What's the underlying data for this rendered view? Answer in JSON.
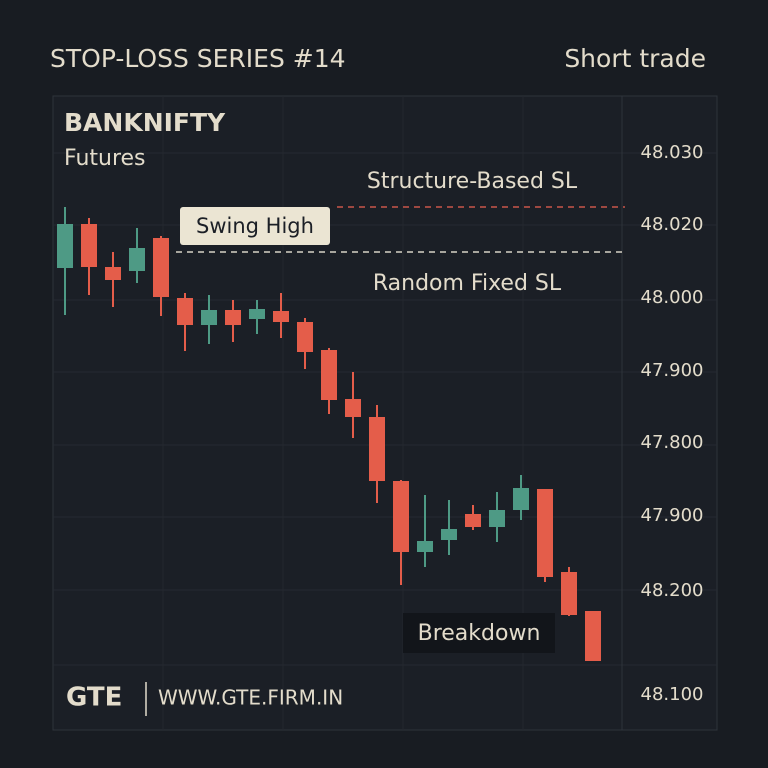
{
  "header": {
    "title": "STOP-LOSS SERIES #14",
    "tag": "Short trade"
  },
  "chart": {
    "symbol": "BANKNIFTY",
    "subtitle": "Futures",
    "annotations": {
      "structure_sl": "Structure-Based SL",
      "swing_high": "Swing High",
      "random_sl": "Random Fixed SL",
      "breakdown": "Breakdown"
    },
    "price_labels": [
      "48.030",
      "48.020",
      "48.000",
      "47.900",
      "47.800",
      "47.900",
      "48.200",
      "48.100"
    ]
  },
  "footer": {
    "brand": "GTE",
    "url": "WWW.GTE.FIRM.IN"
  }
}
